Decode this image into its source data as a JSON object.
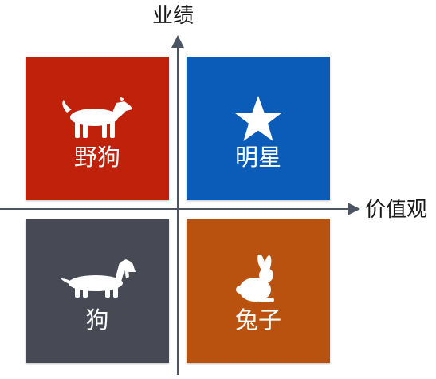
{
  "axes": {
    "y_label": "业绩",
    "x_label": "价值观"
  },
  "quadrants": [
    {
      "id": "top-left",
      "label": "野狗",
      "icon": "dog-icon",
      "color": "#c0210a"
    },
    {
      "id": "top-right",
      "label": "明星",
      "icon": "star-icon",
      "color": "#0b5bb9"
    },
    {
      "id": "bottom-left",
      "label": "狗",
      "icon": "dachshund-icon",
      "color": "#474a54"
    },
    {
      "id": "bottom-right",
      "label": "兔子",
      "icon": "rabbit-icon",
      "color": "#b9520f"
    }
  ],
  "colors": {
    "axis": "#4b5563",
    "text": "#1a1a1a",
    "icon": "#ffffff"
  }
}
